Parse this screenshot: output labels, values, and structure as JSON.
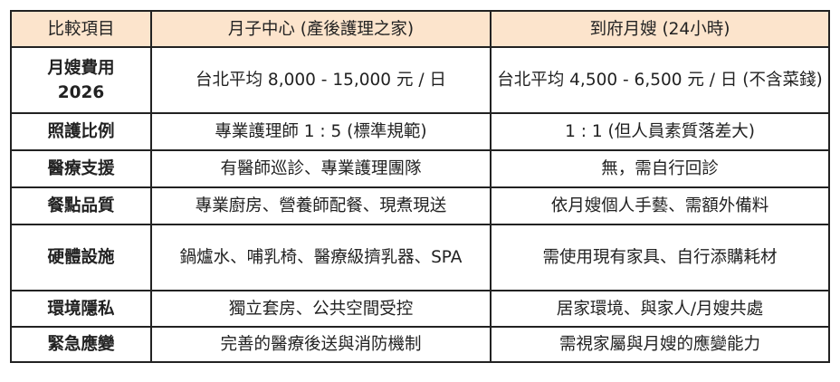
{
  "table": {
    "header_bg": "#fce4cc",
    "headers": [
      "比較項目",
      "月子中心 (產後護理之家)",
      "到府月嫂 (24小時)"
    ],
    "rows": [
      {
        "item": "月嫂費用 2026",
        "center": "台北平均 8,000 - 15,000 元 / 日",
        "home": "台北平均 4,500 - 6,500 元 / 日 (不含菜錢)"
      },
      {
        "item": "照護比例",
        "center": "專業護理師 1 : 5 (標準規範)",
        "home": "1 : 1 (但人員素質落差大)"
      },
      {
        "item": "醫療支援",
        "center": "有醫師巡診、專業護理團隊",
        "home": "無，需自行回診"
      },
      {
        "item": "餐點品質",
        "center": "專業廚房、營養師配餐、現煮現送",
        "home": "依月嫂個人手藝、需額外備料"
      },
      {
        "item": "硬體設施",
        "center": "鍋爐水、哺乳椅、醫療級擠乳器、SPA",
        "home": "需使用現有家具、自行添購耗材"
      },
      {
        "item": "環境隱私",
        "center": "獨立套房、公共空間受控",
        "home": "居家環境、與家人/月嫂共處"
      },
      {
        "item": "緊急應變",
        "center": "完善的醫療後送與消防機制",
        "home": "需視家屬與月嫂的應變能力"
      }
    ]
  }
}
